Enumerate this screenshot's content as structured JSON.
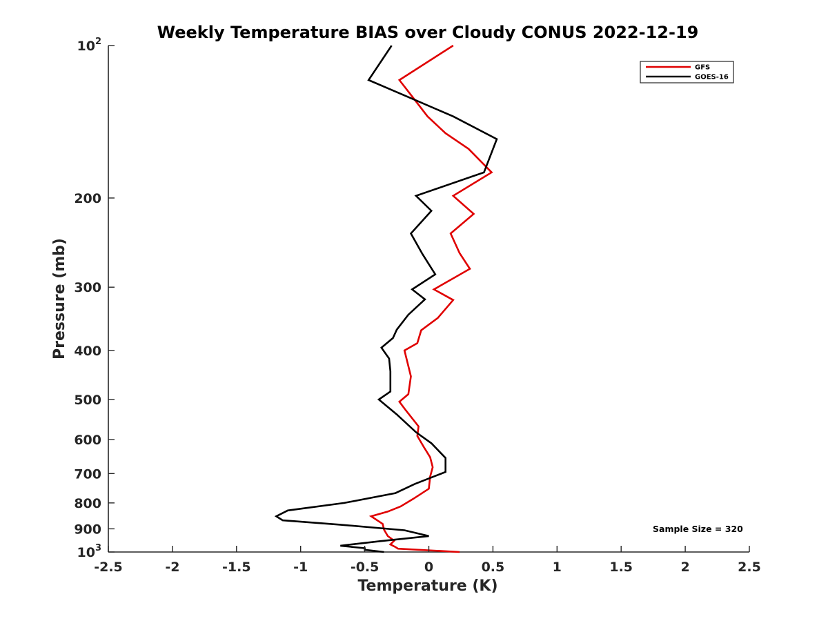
{
  "chart_data": {
    "type": "line",
    "title": "Weekly Temperature BIAS over Cloudy CONUS 2022-12-19",
    "xlabel": "Temperature (K)",
    "ylabel": "Pressure (mb)",
    "xlim": [
      -2.5,
      2.5
    ],
    "ylim": [
      100,
      1000
    ],
    "y_scale": "log",
    "y_reversed": true,
    "x_ticks": [
      -2.5,
      -2,
      -1.5,
      -1,
      -0.5,
      0,
      0.5,
      1,
      1.5,
      2,
      2.5
    ],
    "x_tick_labels": [
      "-2.5",
      "-2",
      "-1.5",
      "-1",
      "-0.5",
      "0",
      "0.5",
      "1",
      "1.5",
      "2",
      "2.5"
    ],
    "y_ticks": [
      {
        "value": 100,
        "label": "10",
        "sup": "2"
      },
      {
        "value": 200,
        "label": "200"
      },
      {
        "value": 300,
        "label": "300"
      },
      {
        "value": 400,
        "label": "400"
      },
      {
        "value": 500,
        "label": "500"
      },
      {
        "value": 600,
        "label": "600"
      },
      {
        "value": 700,
        "label": "700"
      },
      {
        "value": 800,
        "label": "800"
      },
      {
        "value": 900,
        "label": "900"
      },
      {
        "value": 1000,
        "label": "10",
        "sup": "3"
      }
    ],
    "grid": false,
    "legend_position": "top-right",
    "annotation": "Sample Size = 320",
    "series": [
      {
        "name": "GFS",
        "color": "#e00000",
        "points": [
          [
            0.19,
            100
          ],
          [
            -0.23,
            117
          ],
          [
            -0.11,
            128
          ],
          [
            -0.01,
            138
          ],
          [
            0.13,
            149
          ],
          [
            0.31,
            160
          ],
          [
            0.49,
            178
          ],
          [
            0.19,
            198
          ],
          [
            0.35,
            215
          ],
          [
            0.17,
            235
          ],
          [
            0.24,
            257
          ],
          [
            0.32,
            276
          ],
          [
            0.04,
            303
          ],
          [
            0.19,
            318
          ],
          [
            0.07,
            345
          ],
          [
            -0.06,
            365
          ],
          [
            -0.09,
            387
          ],
          [
            -0.19,
            400
          ],
          [
            -0.14,
            450
          ],
          [
            -0.16,
            488
          ],
          [
            -0.23,
            505
          ],
          [
            -0.18,
            525
          ],
          [
            -0.08,
            565
          ],
          [
            -0.09,
            590
          ],
          [
            -0.04,
            620
          ],
          [
            0.01,
            650
          ],
          [
            0.03,
            680
          ],
          [
            0.01,
            710
          ],
          [
            0.0,
            750
          ],
          [
            -0.12,
            785
          ],
          [
            -0.22,
            813
          ],
          [
            -0.32,
            832
          ],
          [
            -0.45,
            850
          ],
          [
            -0.36,
            880
          ],
          [
            -0.35,
            903
          ],
          [
            -0.32,
            930
          ],
          [
            -0.27,
            950
          ],
          [
            -0.3,
            966
          ],
          [
            -0.26,
            978
          ],
          [
            -0.24,
            985
          ],
          [
            0.24,
            1000
          ]
        ]
      },
      {
        "name": "GOES-16",
        "color": "#000000",
        "points": [
          [
            -0.29,
            100
          ],
          [
            -0.47,
            117
          ],
          [
            -0.11,
            128
          ],
          [
            0.19,
            138
          ],
          [
            0.53,
            153
          ],
          [
            0.43,
            178
          ],
          [
            -0.1,
            198
          ],
          [
            0.02,
            212
          ],
          [
            -0.14,
            235
          ],
          [
            -0.05,
            258
          ],
          [
            0.05,
            283
          ],
          [
            -0.13,
            303
          ],
          [
            -0.03,
            317
          ],
          [
            -0.16,
            340
          ],
          [
            -0.25,
            364
          ],
          [
            -0.28,
            378
          ],
          [
            -0.37,
            395
          ],
          [
            -0.31,
            415
          ],
          [
            -0.3,
            440
          ],
          [
            -0.3,
            482
          ],
          [
            -0.39,
            500
          ],
          [
            -0.25,
            535
          ],
          [
            -0.1,
            580
          ],
          [
            0.02,
            610
          ],
          [
            0.13,
            652
          ],
          [
            0.13,
            695
          ],
          [
            -0.11,
            734
          ],
          [
            -0.26,
            765
          ],
          [
            -0.66,
            800
          ],
          [
            -1.1,
            828
          ],
          [
            -1.19,
            850
          ],
          [
            -1.14,
            866
          ],
          [
            -0.7,
            883
          ],
          [
            -0.19,
            906
          ],
          [
            0.0,
            930
          ],
          [
            -0.38,
            952
          ],
          [
            -0.69,
            972
          ],
          [
            -0.5,
            983
          ],
          [
            -0.5,
            990
          ],
          [
            -0.35,
            1000
          ]
        ]
      }
    ]
  }
}
